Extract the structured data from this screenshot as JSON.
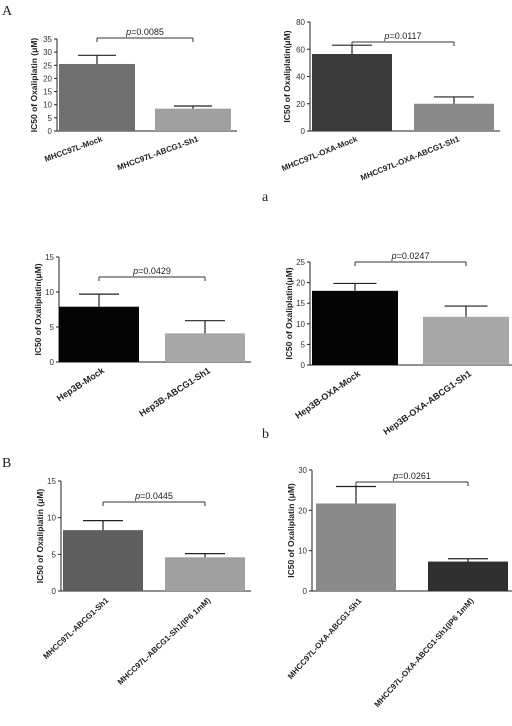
{
  "labels": {
    "panel_A": "A",
    "panel_B": "B",
    "sub_a": "a",
    "sub_b": "b"
  },
  "colors": {
    "axis": "#222222",
    "bracket": "#333333",
    "error": "#222222"
  },
  "chart_data": [
    {
      "type": "bar",
      "ylabel": "IC50 of Oxaliplatin (μM)",
      "categories": [
        "MHCC97L-Mock",
        "MHCC97L-ABCG1-Sh1"
      ],
      "values": [
        25.5,
        8.5
      ],
      "errors": [
        3.3,
        1.0
      ],
      "colors": [
        "#707070",
        "#a0a0a0"
      ],
      "ylim": [
        0,
        35
      ],
      "yticks": [
        0,
        5,
        10,
        15,
        20,
        25,
        30,
        35
      ],
      "pvalue": "p=0.0085"
    },
    {
      "type": "bar",
      "ylabel": "IC50 of Oxaliplatin(μM)",
      "categories": [
        "MHCC97L-OXA-Mock",
        "MHCC97L-OXA-ABCG1-Sh1"
      ],
      "values": [
        56.5,
        20.0
      ],
      "errors": [
        6.5,
        5.0
      ],
      "colors": [
        "#3a3a3a",
        "#8a8a8a"
      ],
      "ylim": [
        0,
        80
      ],
      "yticks": [
        0,
        20,
        40,
        60,
        80
      ],
      "pvalue": "p=0.0117"
    },
    {
      "type": "bar",
      "ylabel": "IC50 of Oxaliplatin(μM)",
      "categories": [
        "Hep3B-Mock",
        "Hep3B-ABCG1-Sh1"
      ],
      "values": [
        7.9,
        4.1
      ],
      "errors": [
        1.8,
        1.8
      ],
      "colors": [
        "#050505",
        "#a8a8a8"
      ],
      "ylim": [
        0,
        15
      ],
      "yticks": [
        0,
        5,
        10,
        15
      ],
      "pvalue": "p=0.0429"
    },
    {
      "type": "bar",
      "ylabel": "IC50 of Oxaliplatin(μM)",
      "categories": [
        "Hep3B-OXA-Mock",
        "Hep3B-OXA-ABCG1-Sh1"
      ],
      "values": [
        18.0,
        11.7
      ],
      "errors": [
        1.8,
        2.6
      ],
      "colors": [
        "#050505",
        "#a8a8a8"
      ],
      "ylim": [
        0,
        25
      ],
      "yticks": [
        0,
        5,
        10,
        15,
        20,
        25
      ],
      "pvalue": "p=0.0247"
    },
    {
      "type": "bar",
      "ylabel": "IC50 of Oxaliplatin (μM)",
      "categories": [
        "MHCC97L-ABCG1-Sh1",
        "MHCC97L-ABCG1-Sh1(IP6 1mM)"
      ],
      "values": [
        8.3,
        4.6
      ],
      "errors": [
        1.3,
        0.5
      ],
      "colors": [
        "#5e5e5e",
        "#a0a0a0"
      ],
      "ylim": [
        0,
        15
      ],
      "yticks": [
        0,
        5,
        10,
        15
      ],
      "pvalue": "p=0.0445"
    },
    {
      "type": "bar",
      "ylabel": "IC50 of Oxaliplatin (μM)",
      "categories": [
        "MHCC97L-OXA-ABCG1-Sh1",
        "MHCC97L-OXA-ABCG1-Sh1(IP6 1mM)"
      ],
      "values": [
        21.7,
        7.3
      ],
      "errors": [
        4.2,
        0.7
      ],
      "colors": [
        "#8a8a8a",
        "#303030"
      ],
      "ylim": [
        0,
        30
      ],
      "yticks": [
        0,
        10,
        20,
        30
      ],
      "pvalue": "p=0.0261"
    }
  ]
}
